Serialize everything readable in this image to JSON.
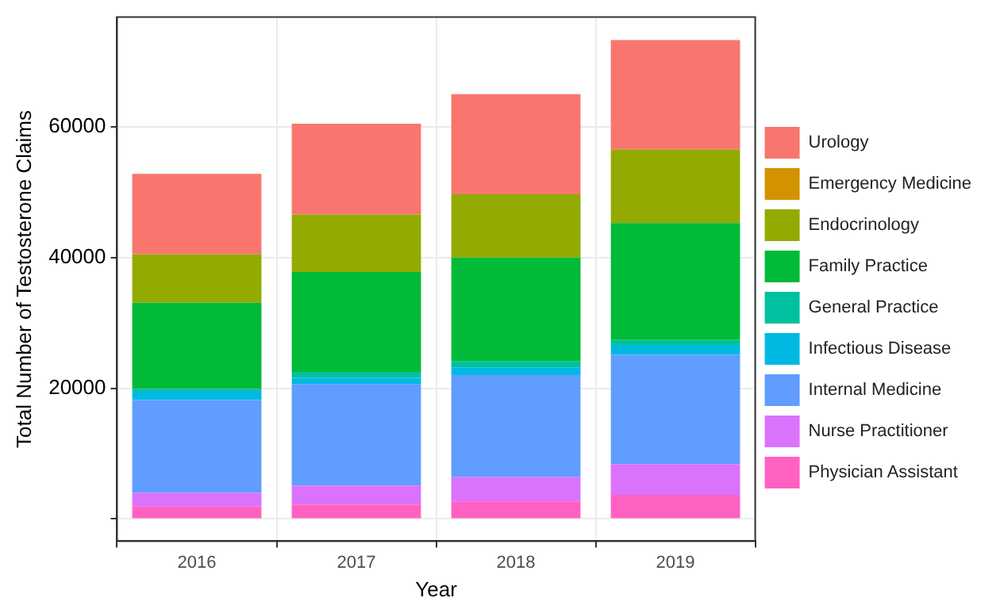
{
  "chart_data": {
    "type": "bar",
    "stacked": true,
    "xlabel": "Year",
    "ylabel": "Total Number of Testosterone Claims",
    "categories": [
      "2016",
      "2017",
      "2018",
      "2019"
    ],
    "ylim": [
      -3400,
      76800
    ],
    "yticks": [
      {
        "value": 0,
        "label": null
      },
      20000,
      40000,
      60000
    ],
    "grid": true,
    "legend": "right",
    "series": [
      {
        "name": "Physician Assistant",
        "color": "#ff61c3",
        "values": [
          1900,
          2200,
          2700,
          3700
        ]
      },
      {
        "name": "Nurse Practitioner",
        "color": "#db72fb",
        "values": [
          2100,
          2900,
          3700,
          4700
        ]
      },
      {
        "name": "Internal Medicine",
        "color": "#619cff",
        "values": [
          14200,
          15500,
          15600,
          16700
        ]
      },
      {
        "name": "Infectious Disease",
        "color": "#00b9e3",
        "values": [
          1400,
          1000,
          1200,
          1400
        ]
      },
      {
        "name": "General Practice",
        "color": "#00c19f",
        "values": [
          300,
          900,
          900,
          900
        ]
      },
      {
        "name": "Family Practice",
        "color": "#00ba38",
        "values": [
          13200,
          15300,
          15900,
          17900
        ]
      },
      {
        "name": "Endocrinology",
        "color": "#93aa00",
        "values": [
          7400,
          8800,
          9700,
          11200
        ]
      },
      {
        "name": "Emergency Medicine",
        "color": "#d39200",
        "values": [
          0,
          0,
          0,
          0
        ]
      },
      {
        "name": "Urology",
        "color": "#f8766d",
        "values": [
          12300,
          13900,
          15300,
          16800
        ]
      }
    ]
  }
}
